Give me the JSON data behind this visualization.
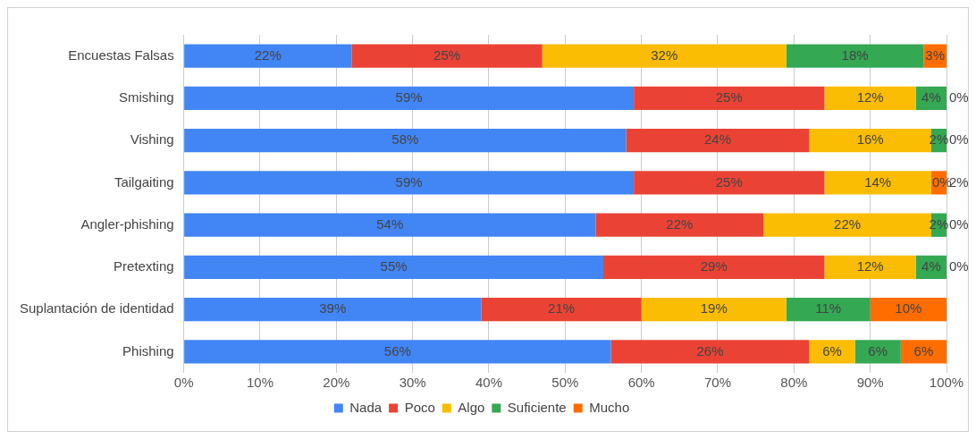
{
  "chart_data": {
    "type": "bar",
    "orientation": "horizontal",
    "stacked": true,
    "categories": [
      "Encuestas Falsas",
      "Smishing",
      "Vishing",
      "Tailgaiting",
      "Angler-phishing",
      "Pretexting",
      "Suplantación de identidad",
      "Phishing"
    ],
    "series": [
      {
        "name": "Nada",
        "color": "#4285f4",
        "values": [
          22,
          59,
          58,
          59,
          54,
          55,
          39,
          56
        ],
        "value_labels": [
          "22%",
          "59%",
          "58%",
          "59%",
          "54%",
          "55%",
          "39%",
          "56%"
        ]
      },
      {
        "name": "Poco",
        "color": "#ea4335",
        "values": [
          25,
          25,
          24,
          25,
          22,
          29,
          21,
          26
        ],
        "value_labels": [
          "25%",
          "25%",
          "24%",
          "25%",
          "22%",
          "29%",
          "21%",
          "26%"
        ]
      },
      {
        "name": "Algo",
        "color": "#fbbc04",
        "values": [
          32,
          12,
          16,
          14,
          22,
          12,
          19,
          6
        ],
        "value_labels": [
          "32%",
          "12%",
          "16%",
          "14%",
          "22%",
          "12%",
          "19%",
          "6%"
        ]
      },
      {
        "name": "Suficiente",
        "color": "#34a853",
        "values": [
          18,
          4,
          2,
          0,
          2,
          4,
          11,
          6
        ],
        "value_labels": [
          "18%",
          "4%",
          "2%",
          "0%",
          "2%",
          "4%",
          "11%",
          "6%"
        ]
      },
      {
        "name": "Mucho",
        "color": "#ff6d01",
        "values": [
          3,
          0,
          0,
          2,
          0,
          0,
          10,
          6
        ],
        "value_labels": [
          "3%",
          "0%",
          "0%",
          "2%",
          "0%",
          "0%",
          "10%",
          "6%"
        ]
      }
    ],
    "xlim": [
      0,
      100
    ],
    "xticks": [
      {
        "value": 0,
        "label": "0%"
      },
      {
        "value": 10,
        "label": "10%"
      },
      {
        "value": 20,
        "label": "20%"
      },
      {
        "value": 30,
        "label": "30%"
      },
      {
        "value": 40,
        "label": "40%"
      },
      {
        "value": 50,
        "label": "50%"
      },
      {
        "value": 60,
        "label": "60%"
      },
      {
        "value": 70,
        "label": "70%"
      },
      {
        "value": 80,
        "label": "80%"
      },
      {
        "value": 90,
        "label": "90%"
      },
      {
        "value": 100,
        "label": "100%"
      }
    ],
    "grid": "x",
    "legend": "bottom"
  }
}
